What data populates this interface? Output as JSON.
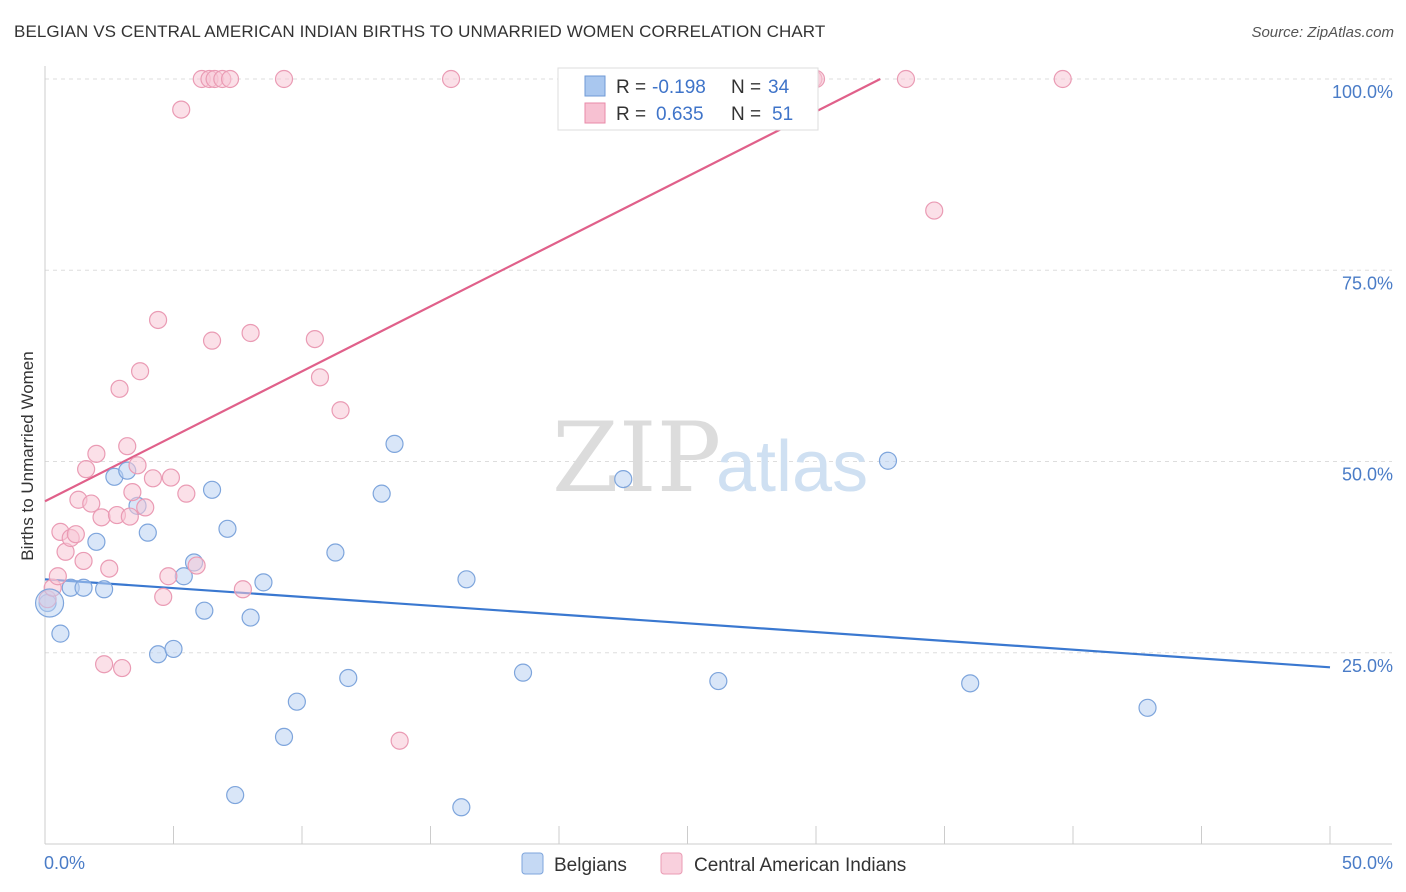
{
  "title": "BELGIAN VS CENTRAL AMERICAN INDIAN BIRTHS TO UNMARRIED WOMEN CORRELATION CHART",
  "source": "Source: ZipAtlas.com",
  "watermark": {
    "zip": "ZIP",
    "atlas": "atlas"
  },
  "legend": {
    "rows": [
      {
        "r_label": "R =",
        "r_value": "-0.198",
        "n_label": "N =",
        "n_value": "34",
        "color": "#a9c7ef",
        "stroke": "#6f9ad6"
      },
      {
        "r_label": "R =",
        "r_value": "0.635",
        "n_label": "N =",
        "n_value": "51",
        "color": "#f7c1d2",
        "stroke": "#e98aa8"
      }
    ]
  },
  "bottom_legend": [
    {
      "label": "Belgians",
      "color": "#c5d9f4",
      "stroke": "#7ea5dc"
    },
    {
      "label": "Central American Indians",
      "color": "#f9d0dd",
      "stroke": "#ea9bb4"
    }
  ],
  "chart_data": {
    "type": "scatter",
    "title": "BELGIAN VS CENTRAL AMERICAN INDIAN BIRTHS TO UNMARRIED WOMEN CORRELATION CHART",
    "xlabel": "",
    "ylabel": "Births to Unmarried Women",
    "xlim": [
      0,
      50
    ],
    "ylim": [
      0,
      105
    ],
    "x_tick_labels": [
      "0.0%",
      "50.0%"
    ],
    "y_tick_values": [
      25,
      50,
      75,
      100
    ],
    "y_tick_labels": [
      "25.0%",
      "50.0%",
      "75.0%",
      "100.0%"
    ],
    "grid": true,
    "series": [
      {
        "name": "Belgians",
        "color": "#7ea5dc",
        "fill": "#b9d2f2",
        "trend": {
          "x": [
            0,
            50
          ],
          "y": [
            34.6,
            23.1
          ],
          "color": "#3a78d0"
        },
        "points": [
          [
            0.1,
            31.5
          ],
          [
            0.6,
            27.5
          ],
          [
            1.0,
            33.5
          ],
          [
            1.5,
            33.5
          ],
          [
            2.0,
            39.5
          ],
          [
            2.3,
            33.3
          ],
          [
            2.7,
            48.0
          ],
          [
            3.2,
            48.8
          ],
          [
            3.6,
            44.2
          ],
          [
            4.0,
            40.7
          ],
          [
            4.4,
            24.8
          ],
          [
            5.0,
            25.5
          ],
          [
            5.4,
            35.0
          ],
          [
            5.8,
            36.8
          ],
          [
            6.2,
            30.5
          ],
          [
            6.5,
            46.3
          ],
          [
            7.1,
            41.2
          ],
          [
            7.4,
            6.4
          ],
          [
            8.0,
            29.6
          ],
          [
            8.5,
            34.2
          ],
          [
            9.3,
            14.0
          ],
          [
            9.8,
            18.6
          ],
          [
            11.3,
            38.1
          ],
          [
            11.8,
            21.7
          ],
          [
            13.1,
            45.8
          ],
          [
            13.6,
            52.3
          ],
          [
            16.2,
            4.8
          ],
          [
            16.4,
            34.6
          ],
          [
            18.6,
            22.4
          ],
          [
            22.5,
            47.7
          ],
          [
            26.2,
            21.3
          ],
          [
            32.8,
            50.1
          ],
          [
            36.0,
            21.0
          ],
          [
            42.9,
            17.8
          ]
        ]
      },
      {
        "name": "Central American Indians",
        "color": "#ea9bb4",
        "fill": "#f7c7d6",
        "trend": {
          "x": [
            0,
            32.5
          ],
          "y": [
            44.8,
            100.0
          ],
          "color": "#e0608a"
        },
        "points": [
          [
            0.1,
            32.0
          ],
          [
            0.3,
            33.5
          ],
          [
            0.5,
            35.0
          ],
          [
            0.6,
            40.8
          ],
          [
            0.8,
            38.2
          ],
          [
            1.0,
            40.0
          ],
          [
            1.2,
            40.5
          ],
          [
            1.3,
            45.0
          ],
          [
            1.5,
            37.0
          ],
          [
            1.6,
            49.0
          ],
          [
            1.8,
            44.5
          ],
          [
            2.0,
            51.0
          ],
          [
            2.2,
            42.7
          ],
          [
            2.3,
            23.5
          ],
          [
            2.5,
            36.0
          ],
          [
            2.8,
            43.0
          ],
          [
            2.9,
            59.5
          ],
          [
            3.0,
            23.0
          ],
          [
            3.2,
            52.0
          ],
          [
            3.3,
            42.8
          ],
          [
            3.4,
            46.0
          ],
          [
            3.6,
            49.5
          ],
          [
            3.7,
            61.8
          ],
          [
            3.9,
            44.0
          ],
          [
            4.2,
            47.8
          ],
          [
            4.4,
            68.5
          ],
          [
            4.6,
            32.3
          ],
          [
            4.8,
            35.0
          ],
          [
            4.9,
            47.9
          ],
          [
            5.3,
            96.0
          ],
          [
            5.5,
            45.8
          ],
          [
            5.9,
            36.4
          ],
          [
            6.1,
            100.0
          ],
          [
            6.4,
            100.0
          ],
          [
            6.5,
            65.8
          ],
          [
            6.6,
            100.0
          ],
          [
            6.9,
            100.0
          ],
          [
            7.2,
            100.0
          ],
          [
            7.7,
            33.3
          ],
          [
            8.0,
            66.8
          ],
          [
            9.3,
            100.0
          ],
          [
            10.5,
            66.0
          ],
          [
            10.7,
            61.0
          ],
          [
            11.5,
            56.7
          ],
          [
            13.8,
            13.5
          ],
          [
            15.8,
            100.0
          ],
          [
            29.9,
            100.0
          ],
          [
            30.0,
            100.0
          ],
          [
            33.5,
            100.0
          ],
          [
            34.6,
            82.8
          ],
          [
            39.6,
            100.0
          ]
        ]
      }
    ]
  }
}
